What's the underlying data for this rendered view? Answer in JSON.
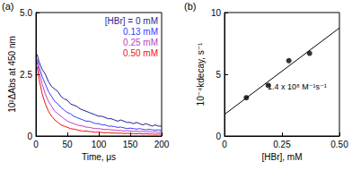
{
  "chart_data": [
    {
      "type": "line",
      "title": "(a)",
      "x_label": "Time, μs",
      "y_label": "10²ΔAbs at 450 nm",
      "xlim": [
        0,
        200
      ],
      "xticks": [
        0,
        50,
        100,
        150,
        200
      ],
      "ylim": [
        0,
        5
      ],
      "yticks": [
        0,
        2.5,
        {
          "value": 5,
          "label": "5.0"
        }
      ],
      "grid": false,
      "legend": "upper right",
      "x": [
        2,
        5,
        10,
        15,
        20,
        25,
        30,
        35,
        40,
        45,
        50,
        55,
        60,
        65,
        70,
        75,
        80,
        85,
        90,
        95,
        100,
        105,
        110,
        115,
        120,
        125,
        130,
        135,
        140,
        145,
        150,
        155,
        160,
        165,
        170,
        175,
        180,
        185,
        190,
        195,
        200
      ],
      "series": [
        {
          "name": "[HBr] = 0 mM",
          "color": "#1f1f8f",
          "values": [
            3.3,
            3.0,
            2.7,
            2.5,
            2.2,
            2.0,
            1.9,
            1.8,
            1.6,
            1.5,
            1.45,
            1.3,
            1.25,
            1.2,
            1.1,
            1.05,
            1.0,
            0.95,
            0.9,
            0.85,
            0.8,
            0.8,
            0.75,
            0.7,
            0.7,
            0.65,
            0.6,
            0.65,
            0.6,
            0.55,
            0.55,
            0.5,
            0.55,
            0.5,
            0.45,
            0.5,
            0.45,
            0.4,
            0.45,
            0.4,
            0.4
          ]
        },
        {
          "name": "0.13 mM",
          "color": "#3a3aff",
          "values": [
            3.1,
            2.8,
            2.4,
            2.1,
            1.8,
            1.6,
            1.4,
            1.3,
            1.15,
            1.05,
            0.95,
            0.9,
            0.8,
            0.75,
            0.7,
            0.65,
            0.6,
            0.6,
            0.55,
            0.5,
            0.5,
            0.45,
            0.45,
            0.4,
            0.4,
            0.38,
            0.35,
            0.36,
            0.33,
            0.3,
            0.32,
            0.3,
            0.28,
            0.3,
            0.27,
            0.25,
            0.27,
            0.25,
            0.24,
            0.25,
            0.22
          ]
        },
        {
          "name": "0.25 mM",
          "color": "#c03cc8",
          "values": [
            3.0,
            2.6,
            2.1,
            1.7,
            1.4,
            1.2,
            1.0,
            0.9,
            0.8,
            0.7,
            0.6,
            0.55,
            0.5,
            0.45,
            0.42,
            0.4,
            0.36,
            0.35,
            0.32,
            0.3,
            0.3,
            0.28,
            0.26,
            0.27,
            0.25,
            0.24,
            0.22,
            0.23,
            0.2,
            0.22,
            0.2,
            0.19,
            0.2,
            0.18,
            0.19,
            0.17,
            0.18,
            0.16,
            0.17,
            0.15,
            0.16
          ]
        },
        {
          "name": "0.50 mM",
          "color": "#ee1111",
          "values": [
            2.8,
            2.3,
            1.7,
            1.3,
            1.0,
            0.8,
            0.65,
            0.55,
            0.45,
            0.4,
            0.35,
            0.3,
            0.28,
            0.25,
            0.22,
            0.2,
            0.2,
            0.18,
            0.17,
            0.15,
            0.16,
            0.14,
            0.13,
            0.14,
            0.12,
            0.12,
            0.11,
            0.12,
            0.1,
            0.11,
            0.1,
            0.1,
            0.09,
            0.1,
            0.08,
            0.09,
            0.08,
            0.08,
            0.07,
            0.08,
            0.07
          ]
        }
      ]
    },
    {
      "type": "scatter",
      "title": "(b)",
      "x_label": "[HBr], mM",
      "y_label": "10⁻⁴kdecay, s⁻¹",
      "xlim": [
        0,
        0.5
      ],
      "xticks": [
        0,
        0.25,
        {
          "value": 0.5,
          "label": "0.50"
        }
      ],
      "ylim": [
        0,
        10
      ],
      "yticks": [
        0,
        5,
        10
      ],
      "grid": false,
      "annotations": [
        "1.4 x 10⁸ M⁻¹s⁻¹"
      ],
      "series": [
        {
          "type": "scatter",
          "marker": "circle",
          "color": "#000000",
          "x": [
            0.095,
            0.19,
            0.28,
            0.37
          ],
          "values": [
            3.1,
            4.1,
            6.1,
            6.7
          ]
        },
        {
          "type": "line",
          "line_style": "solid",
          "color": "#000000",
          "x": [
            0,
            0.5
          ],
          "values": [
            1.75,
            8.75
          ]
        }
      ]
    }
  ]
}
